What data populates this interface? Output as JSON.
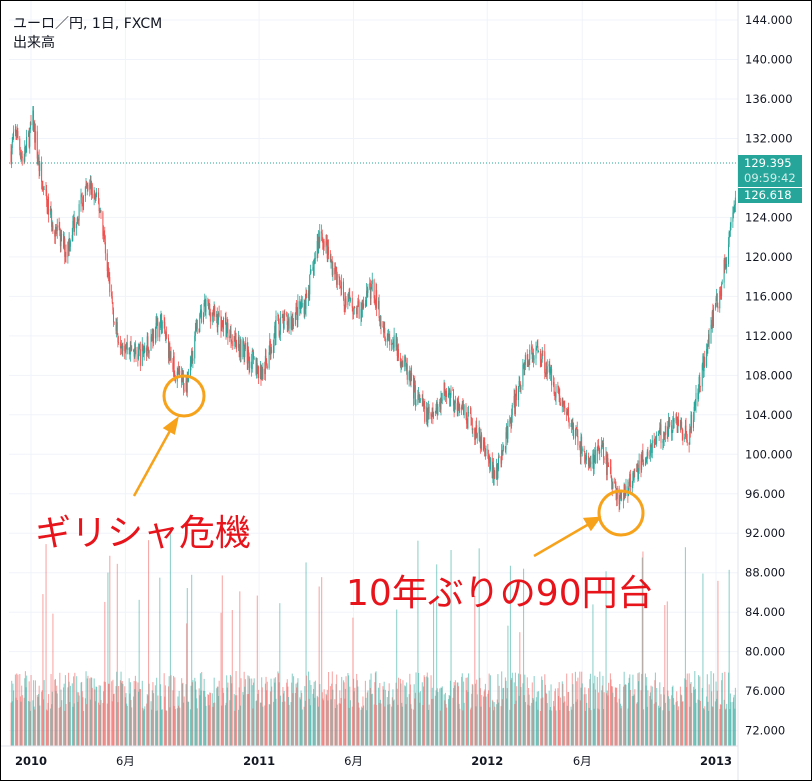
{
  "header": {
    "symbol_line": "ユーロ／円, 1日, FXCM",
    "volume_label": "出来高"
  },
  "price_tag": {
    "last_price": "129.395",
    "countdown": "09:59:42",
    "second_price": "126.618"
  },
  "annotations": [
    {
      "text": "ギリシャ危機",
      "color": "#e8141c"
    },
    {
      "text": "10年ぶりの90円台",
      "color": "#e8141c"
    }
  ],
  "colors": {
    "up": "#26a69a",
    "down": "#ef5350",
    "annotation_marker": "#f7a21b",
    "grid": "#f0f3fa"
  },
  "chart_data": {
    "type": "candlestick",
    "interval": "1日",
    "y_ticks": [
      "144.000",
      "140.000",
      "136.000",
      "132.000",
      "124.000",
      "120.000",
      "116.000",
      "112.000",
      "108.000",
      "104.000",
      "100.000",
      "96.000",
      "92.000",
      "88.000",
      "84.000",
      "80.000",
      "76.000",
      "72.000"
    ],
    "x_ticks": [
      "2010",
      "6月",
      "2011",
      "6月",
      "2012",
      "6月",
      "2013"
    ],
    "ylim": [
      70,
      145.5
    ],
    "reference_line": 129.395,
    "grid": true,
    "close_path": [
      [
        "2009-11-30",
        130.7
      ],
      [
        "2009-12-08",
        132.8
      ],
      [
        "2009-12-19",
        129.7
      ],
      [
        "2010-01-04",
        133.8
      ],
      [
        "2010-01-17",
        127.7
      ],
      [
        "2010-01-30",
        124.6
      ],
      [
        "2010-02-10",
        122.6
      ],
      [
        "2010-02-26",
        120.6
      ],
      [
        "2010-03-14",
        124.1
      ],
      [
        "2010-04-04",
        127.2
      ],
      [
        "2010-04-23",
        124.6
      ],
      [
        "2010-05-06",
        117.5
      ],
      [
        "2010-05-17",
        112.5
      ],
      [
        "2010-06-02",
        111.0
      ],
      [
        "2010-06-26",
        110.0
      ],
      [
        "2010-07-28",
        113.5
      ],
      [
        "2010-08-21",
        108.0
      ],
      [
        "2010-09-06",
        107.0
      ],
      [
        "2010-09-22",
        112.5
      ],
      [
        "2010-10-08",
        115.0
      ],
      [
        "2010-10-31",
        113.5
      ],
      [
        "2010-12-02",
        111.0
      ],
      [
        "2011-01-07",
        108.0
      ],
      [
        "2011-01-28",
        113.0
      ],
      [
        "2011-02-20",
        113.5
      ],
      [
        "2011-03-16",
        115.5
      ],
      [
        "2011-03-28",
        118.6
      ],
      [
        "2011-04-09",
        122.6
      ],
      [
        "2011-04-25",
        119.6
      ],
      [
        "2011-05-19",
        115.5
      ],
      [
        "2011-06-12",
        114.5
      ],
      [
        "2011-07-01",
        117.0
      ],
      [
        "2011-07-22",
        112.5
      ],
      [
        "2011-08-15",
        110.0
      ],
      [
        "2011-09-08",
        106.0
      ],
      [
        "2011-10-02",
        103.4
      ],
      [
        "2011-10-26",
        106.5
      ],
      [
        "2011-11-19",
        104.4
      ],
      [
        "2011-12-13",
        102.4
      ],
      [
        "2011-12-29",
        100.3
      ],
      [
        "2012-01-14",
        97.8
      ],
      [
        "2012-01-30",
        101.3
      ],
      [
        "2012-02-15",
        105.4
      ],
      [
        "2012-03-02",
        109.5
      ],
      [
        "2012-03-23",
        110.5
      ],
      [
        "2012-04-11",
        108.0
      ],
      [
        "2012-05-05",
        104.4
      ],
      [
        "2012-05-29",
        100.8
      ],
      [
        "2012-06-14",
        98.8
      ],
      [
        "2012-06-30",
        100.8
      ],
      [
        "2012-07-19",
        97.3
      ],
      [
        "2012-07-31",
        95.3
      ],
      [
        "2012-08-24",
        97.8
      ],
      [
        "2012-09-17",
        100.8
      ],
      [
        "2012-10-11",
        102.4
      ],
      [
        "2012-11-04",
        103.4
      ],
      [
        "2012-11-17",
        101.3
      ],
      [
        "2012-12-06",
        107.4
      ],
      [
        "2012-12-25",
        113.5
      ],
      [
        "2013-01-07",
        116.5
      ],
      [
        "2013-01-18",
        120.0
      ],
      [
        "2013-01-31",
        125.2
      ],
      [
        "2013-02-03",
        126.6
      ]
    ]
  }
}
